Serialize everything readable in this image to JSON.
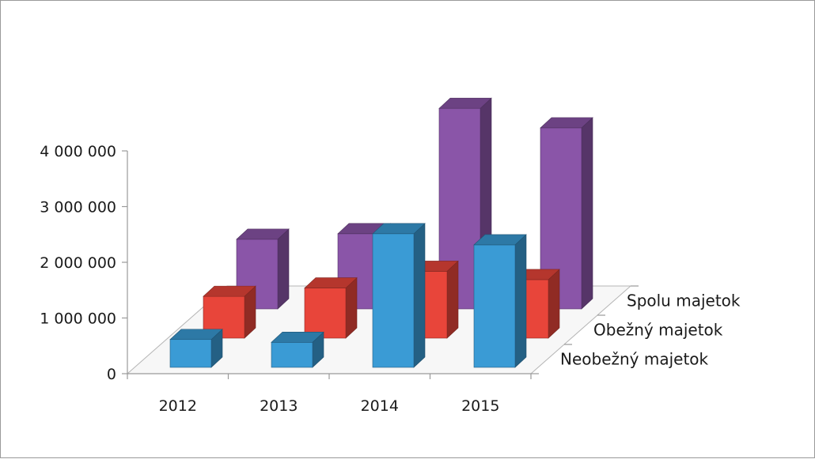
{
  "chart_data": {
    "type": "bar",
    "subtype": "3d-column",
    "title": "",
    "xlabel": "",
    "ylabel": "",
    "categories": [
      "2012",
      "2013",
      "2014",
      "2015"
    ],
    "ylim": [
      0,
      4000000
    ],
    "yticks": [
      {
        "value": 0,
        "label": "0"
      },
      {
        "value": 1000000,
        "label": "1 000 000"
      },
      {
        "value": 2000000,
        "label": "2 000 000"
      },
      {
        "value": 3000000,
        "label": "3 000 000"
      },
      {
        "value": 4000000,
        "label": "4 000 000"
      }
    ],
    "grid": false,
    "legend": "depth-axis labels on the right",
    "series": [
      {
        "name": "Neobežný majetok",
        "color": "#3a9bd5",
        "values": [
          500000,
          450000,
          2400000,
          2200000
        ]
      },
      {
        "name": "Obežný majetok",
        "color": "#e8453a",
        "values": [
          750000,
          900000,
          1200000,
          1050000
        ]
      },
      {
        "name": "Spolu majetok",
        "color": "#8a55a8",
        "values": [
          1250000,
          1350000,
          3600000,
          3250000
        ]
      }
    ]
  }
}
